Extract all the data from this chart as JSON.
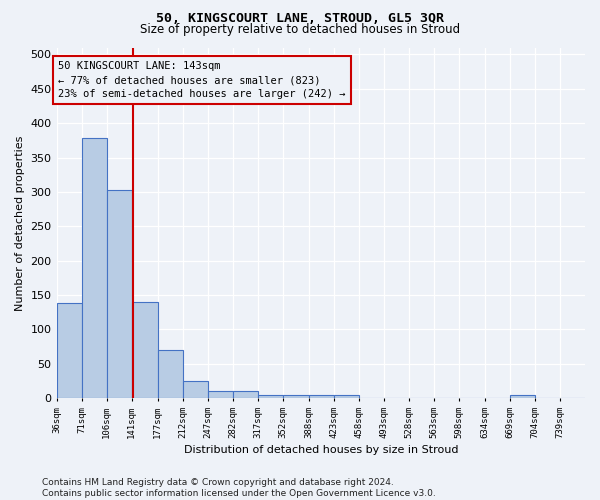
{
  "title_line1": "50, KINGSCOURT LANE, STROUD, GL5 3QR",
  "title_line2": "Size of property relative to detached houses in Stroud",
  "xlabel": "Distribution of detached houses by size in Stroud",
  "ylabel": "Number of detached properties",
  "bar_edges": [
    36,
    71,
    106,
    141,
    177,
    212,
    247,
    282,
    317,
    352,
    388,
    423,
    458,
    493,
    528,
    563,
    598,
    634,
    669,
    704,
    739
  ],
  "bar_heights": [
    138,
    378,
    303,
    140,
    70,
    25,
    10,
    10,
    5,
    5,
    5,
    5,
    0,
    0,
    0,
    0,
    0,
    0,
    5,
    0,
    0
  ],
  "bar_color": "#b8cce4",
  "bar_edgecolor": "#4472c4",
  "bar_linewidth": 0.8,
  "property_line_x": 143,
  "property_line_color": "#cc0000",
  "annotation_line1": "50 KINGSCOURT LANE: 143sqm",
  "annotation_line2": "← 77% of detached houses are smaller (823)",
  "annotation_line3": "23% of semi-detached houses are larger (242) →",
  "annotation_box_color": "#cc0000",
  "annotation_fontsize": 7.5,
  "ylim": [
    0,
    510
  ],
  "yticks": [
    0,
    50,
    100,
    150,
    200,
    250,
    300,
    350,
    400,
    450,
    500
  ],
  "background_color": "#eef2f8",
  "grid_color": "#ffffff",
  "footer_line1": "Contains HM Land Registry data © Crown copyright and database right 2024.",
  "footer_line2": "Contains public sector information licensed under the Open Government Licence v3.0.",
  "footer_fontsize": 6.5,
  "title1_fontsize": 9.5,
  "title2_fontsize": 8.5
}
